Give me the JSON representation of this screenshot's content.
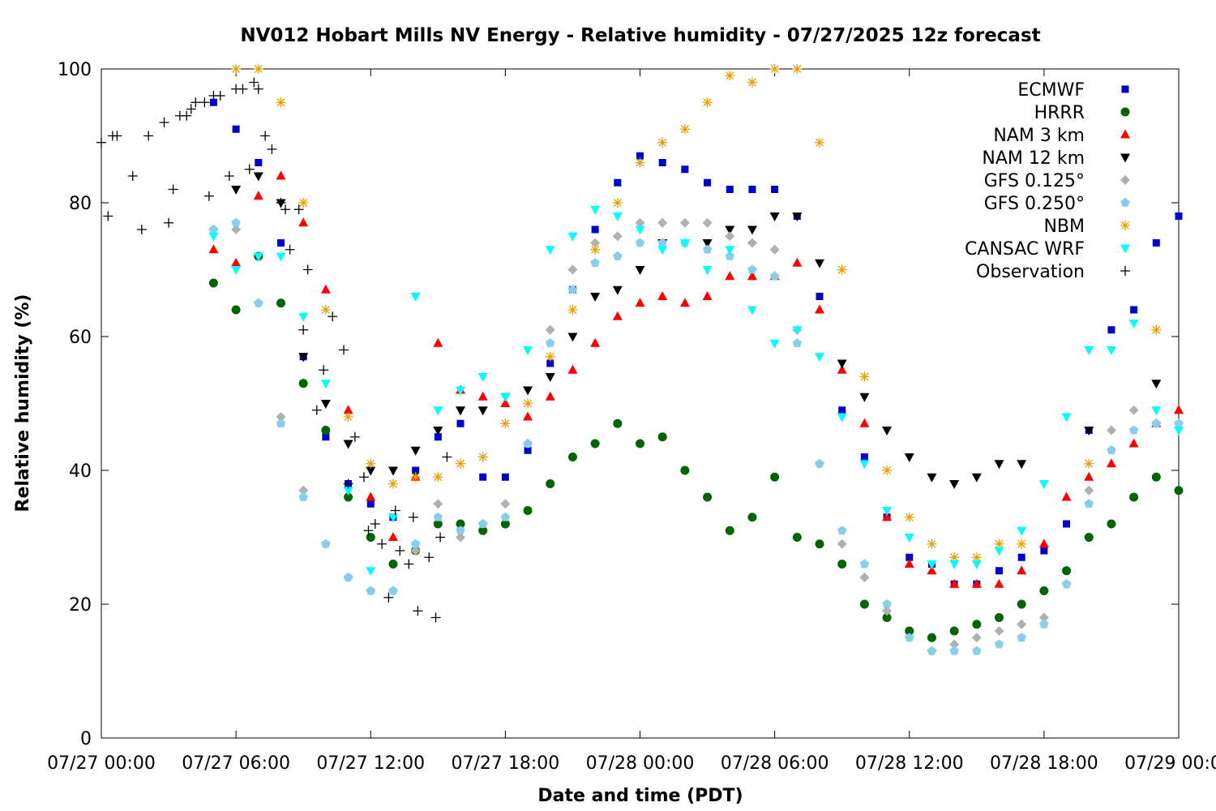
{
  "chart_data": {
    "type": "scatter",
    "title": "NV012 Hobart Mills NV Energy - Relative humidity - 07/27/2025 12z forecast",
    "xlabel": "Date and time (PDT)",
    "ylabel": "Relative humidity (%)",
    "x_unit": "hours after 07/27 00:00 PDT",
    "xlim": [
      0,
      48
    ],
    "ylim": [
      0,
      100
    ],
    "x_ticks": [
      {
        "hour": 0,
        "label": "07/27 00:00"
      },
      {
        "hour": 6,
        "label": "07/27 06:00"
      },
      {
        "hour": 12,
        "label": "07/27 12:00"
      },
      {
        "hour": 18,
        "label": "07/27 18:00"
      },
      {
        "hour": 24,
        "label": "07/28 00:00"
      },
      {
        "hour": 30,
        "label": "07/28 06:00"
      },
      {
        "hour": 36,
        "label": "07/28 12:00"
      },
      {
        "hour": 42,
        "label": "07/28 18:00"
      },
      {
        "hour": 48,
        "label": "07/29 00:00"
      }
    ],
    "y_ticks": [
      0,
      20,
      40,
      60,
      80,
      100
    ],
    "grid": false,
    "legend_position": "top-right",
    "series": [
      {
        "name": "ECMWF",
        "marker": "square",
        "color": "#0000cc",
        "x": [
          5,
          6,
          7,
          8,
          9,
          10,
          11,
          12,
          13,
          14,
          15,
          16,
          17,
          18,
          19,
          20,
          21,
          22,
          23,
          24,
          25,
          26,
          27,
          28,
          29,
          30,
          31,
          32,
          33,
          34,
          35,
          36,
          37,
          38,
          39,
          40,
          41,
          42,
          43,
          44,
          45,
          46,
          47,
          48
        ],
        "y": [
          95,
          91,
          86,
          74,
          57,
          45,
          38,
          35,
          33,
          40,
          45,
          47,
          39,
          39,
          43,
          56,
          67,
          76,
          83,
          87,
          86,
          85,
          83,
          82,
          82,
          82,
          78,
          66,
          49,
          42,
          33,
          27,
          26,
          23,
          23,
          25,
          27,
          28,
          32,
          46,
          61,
          64,
          74,
          78
        ]
      },
      {
        "name": "HRRR",
        "marker": "circle",
        "color": "#006400",
        "x": [
          5,
          6,
          7,
          8,
          9,
          10,
          11,
          12,
          13,
          14,
          15,
          16,
          17,
          18,
          19,
          20,
          21,
          22,
          23,
          24,
          25,
          26,
          27,
          28,
          29,
          30,
          31,
          32,
          33,
          34,
          35,
          36,
          37,
          38,
          39,
          40,
          41,
          42,
          43,
          44,
          45,
          46,
          47,
          48
        ],
        "y": [
          68,
          64,
          72,
          65,
          53,
          46,
          36,
          30,
          26,
          28,
          32,
          32,
          31,
          32,
          34,
          38,
          42,
          44,
          47,
          44,
          45,
          40,
          36,
          31,
          33,
          39,
          30,
          29,
          26,
          20,
          18,
          16,
          15,
          16,
          17,
          18,
          20,
          22,
          25,
          30,
          32,
          36,
          39,
          37
        ]
      },
      {
        "name": "NAM 3 km",
        "marker": "triangle-up",
        "color": "#ff0000",
        "x": [
          5,
          6,
          7,
          8,
          9,
          10,
          11,
          12,
          13,
          14,
          15,
          16,
          17,
          18,
          19,
          20,
          21,
          22,
          23,
          24,
          25,
          26,
          27,
          28,
          29,
          30,
          31,
          32,
          33,
          34,
          35,
          36,
          37,
          38,
          39,
          40,
          41,
          42,
          43,
          44,
          45,
          46,
          47,
          48
        ],
        "y": [
          73,
          71,
          81,
          84,
          77,
          67,
          49,
          36,
          30,
          39,
          59,
          52,
          51,
          50,
          48,
          51,
          55,
          59,
          63,
          65,
          66,
          65,
          66,
          69,
          69,
          69,
          71,
          64,
          55,
          47,
          33,
          26,
          25,
          23,
          23,
          23,
          25,
          29,
          36,
          39,
          41,
          44,
          47,
          49
        ]
      },
      {
        "name": "NAM 12 km",
        "marker": "triangle-down",
        "color": "#000000",
        "x": [
          6,
          7,
          8,
          9,
          10,
          11,
          12,
          13,
          14,
          15,
          16,
          17,
          18,
          19,
          20,
          21,
          22,
          23,
          24,
          25,
          26,
          27,
          28,
          29,
          30,
          31,
          32,
          33,
          34,
          35,
          36,
          37,
          38,
          39,
          40,
          41,
          44,
          47
        ],
        "y": [
          82,
          84,
          80,
          57,
          50,
          44,
          40,
          40,
          43,
          46,
          49,
          49,
          51,
          52,
          54,
          60,
          66,
          67,
          70,
          74,
          74,
          74,
          76,
          76,
          78,
          78,
          71,
          56,
          51,
          46,
          42,
          39,
          38,
          39,
          41,
          41,
          46,
          53
        ]
      },
      {
        "name": "GFS 0.125°",
        "marker": "diamond",
        "color": "#b0b0b0",
        "x": [
          5,
          6,
          7,
          8,
          9,
          10,
          11,
          12,
          13,
          14,
          15,
          16,
          17,
          18,
          19,
          20,
          21,
          22,
          23,
          24,
          25,
          26,
          27,
          28,
          29,
          30,
          31,
          32,
          33,
          34,
          35,
          36,
          37,
          38,
          39,
          40,
          41,
          42,
          43,
          44,
          45,
          46,
          47,
          48
        ],
        "y": [
          76,
          76,
          65,
          48,
          37,
          29,
          24,
          22,
          22,
          28,
          35,
          30,
          32,
          35,
          44,
          61,
          70,
          74,
          75,
          77,
          77,
          77,
          77,
          75,
          74,
          73,
          61,
          41,
          29,
          24,
          19,
          15,
          13,
          14,
          15,
          16,
          17,
          18,
          23,
          37,
          46,
          49,
          47,
          47
        ]
      },
      {
        "name": "GFS 0.250°",
        "marker": "pentagon",
        "color": "#87ceeb",
        "x": [
          5,
          6,
          7,
          8,
          9,
          10,
          11,
          12,
          13,
          14,
          15,
          16,
          17,
          18,
          19,
          20,
          21,
          22,
          23,
          24,
          25,
          26,
          27,
          28,
          29,
          30,
          31,
          32,
          33,
          34,
          35,
          36,
          37,
          38,
          39,
          40,
          41,
          42,
          43,
          44,
          45,
          46,
          47,
          48
        ],
        "y": [
          76,
          77,
          65,
          47,
          36,
          29,
          24,
          22,
          22,
          29,
          33,
          31,
          32,
          33,
          44,
          59,
          67,
          71,
          72,
          74,
          74,
          74,
          73,
          72,
          70,
          69,
          59,
          41,
          31,
          26,
          20,
          15,
          13,
          13,
          13,
          14,
          15,
          17,
          23,
          35,
          43,
          46,
          47,
          47
        ]
      },
      {
        "name": "NBM",
        "marker": "asterisk",
        "color": "#e8a000",
        "x": [
          6,
          7,
          8,
          9,
          10,
          11,
          12,
          13,
          14,
          15,
          16,
          17,
          18,
          19,
          20,
          21,
          22,
          23,
          24,
          25,
          26,
          27,
          28,
          29,
          30,
          31,
          32,
          33,
          34,
          35,
          36,
          37,
          38,
          39,
          40,
          41,
          44,
          47
        ],
        "y": [
          100,
          100,
          95,
          80,
          64,
          48,
          41,
          38,
          39,
          39,
          41,
          42,
          47,
          50,
          57,
          64,
          73,
          80,
          86,
          89,
          91,
          95,
          99,
          98,
          100,
          100,
          89,
          70,
          54,
          40,
          33,
          29,
          27,
          27,
          29,
          29,
          41,
          61
        ]
      },
      {
        "name": "CANSAC WRF",
        "marker": "triangle-down",
        "color": "#00ffff",
        "x": [
          5,
          6,
          7,
          8,
          9,
          10,
          11,
          12,
          13,
          14,
          15,
          16,
          17,
          18,
          19,
          20,
          21,
          22,
          23,
          24,
          25,
          26,
          27,
          28,
          29,
          30,
          31,
          32,
          33,
          34,
          35,
          36,
          37,
          38,
          39,
          40,
          41,
          42,
          43,
          44,
          45,
          46,
          47,
          48
        ],
        "y": [
          75,
          70,
          72,
          72,
          63,
          53,
          37,
          25,
          33,
          66,
          49,
          52,
          54,
          51,
          58,
          73,
          75,
          79,
          78,
          76,
          73,
          74,
          70,
          73,
          64,
          59,
          61,
          57,
          48,
          41,
          34,
          30,
          26,
          26,
          26,
          28,
          31,
          38,
          48,
          58,
          58,
          62,
          49,
          46
        ]
      },
      {
        "name": "Observation",
        "marker": "plus",
        "color": "#000000",
        "x": [
          0,
          0.3,
          0.5,
          0.7,
          1.4,
          1.8,
          2.1,
          2.8,
          3.0,
          3.2,
          3.5,
          3.8,
          4.0,
          4.2,
          4.6,
          4.8,
          5.0,
          5.3,
          5.7,
          6.0,
          6.3,
          6.6,
          6.8,
          7.0,
          7.3,
          7.6,
          8.0,
          8.2,
          8.4,
          8.8,
          9.0,
          9.2,
          9.6,
          9.9,
          10.3,
          10.8,
          11.0,
          11.3,
          11.7,
          11.9,
          12.2,
          12.5,
          12.8,
          13.1,
          13.3,
          13.7,
          13.9,
          14.1,
          14.6,
          14.9,
          15.1,
          15.4
        ],
        "y": [
          89,
          78,
          90,
          90,
          84,
          76,
          90,
          92,
          77,
          82,
          93,
          93,
          94,
          95,
          95,
          81,
          96,
          96,
          84,
          97,
          97,
          85,
          98,
          97,
          90,
          88,
          80,
          79,
          73,
          79,
          61,
          70,
          49,
          55,
          63,
          58,
          38,
          45,
          39,
          31,
          32,
          29,
          21,
          34,
          28,
          26,
          33,
          19,
          27,
          18,
          30,
          42
        ]
      }
    ]
  }
}
